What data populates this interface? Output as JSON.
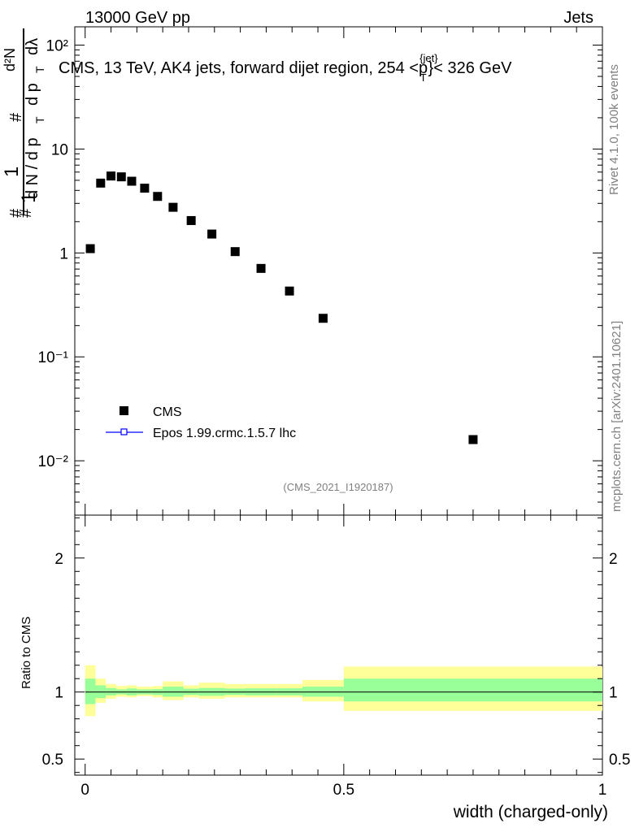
{
  "header": {
    "left": "13000 GeV pp",
    "right": "Jets"
  },
  "side_labels": {
    "rivet": "Rivet 4.1.0,  100k events",
    "mcplots": "mcplots.cern.ch [arXiv:2401.10621]"
  },
  "analysis_id": "(CMS_2021_I1920187)",
  "colors": {
    "data": "#000000",
    "mc": "#0000ff",
    "band_outer": "#ffff99",
    "band_inner": "#99ff99"
  },
  "chart_data": [
    {
      "type": "scatter",
      "panel": "main",
      "title": "CMS, 13 TeV, AK4 jets, forward dijet region, 254 <",
      "title_ptjet_sup": "{jet}",
      "title_ptjet_main": "p",
      "title_ptjet_sub": "T",
      "title_ptjet_close": "}< 326 GeV",
      "ylabel_lines": [
        "#",
        "1",
        "d N / d p",
        "T",
        "#",
        "d p",
        "T",
        "d²N",
        "dλ"
      ],
      "yscale": "log",
      "ylim": [
        0.003,
        150
      ],
      "xlim": [
        -0.02,
        1.0
      ],
      "ytick_labels": [
        "10²",
        "10",
        "1",
        "10⁻¹",
        "10⁻²"
      ],
      "ytick_values": [
        100,
        10,
        1,
        0.1,
        0.01
      ],
      "legend": {
        "position": "bottom-left",
        "entries": [
          "CMS",
          "Epos 1.99.crmc.1.5.7 lhc"
        ]
      },
      "series": [
        {
          "name": "CMS",
          "x": [
            0.01,
            0.03,
            0.05,
            0.07,
            0.09,
            0.115,
            0.14,
            0.17,
            0.205,
            0.245,
            0.29,
            0.34,
            0.395,
            0.46,
            0.75
          ],
          "y": [
            1.1,
            4.7,
            5.5,
            5.4,
            4.9,
            4.2,
            3.5,
            2.75,
            2.05,
            1.52,
            1.03,
            0.71,
            0.43,
            0.235,
            0.016
          ]
        }
      ]
    },
    {
      "type": "area",
      "panel": "ratio",
      "ylabel": "Ratio to CMS",
      "xlabel": "width (charged-only)",
      "ylim": [
        0.38,
        2.32
      ],
      "xlim": [
        -0.02,
        1.0
      ],
      "xtick_labels": [
        "0",
        "0.5",
        "1"
      ],
      "xtick_values": [
        0,
        0.5,
        1
      ],
      "ytick_labels": [
        "2",
        "1",
        "0.5"
      ],
      "ytick_values": [
        2,
        1,
        0.5
      ],
      "bin_edges": [
        0,
        0.02,
        0.04,
        0.06,
        0.08,
        0.1,
        0.13,
        0.15,
        0.19,
        0.22,
        0.27,
        0.31,
        0.37,
        0.42,
        0.5,
        1.0
      ],
      "outer_band": {
        "low": [
          0.82,
          0.92,
          0.95,
          0.965,
          0.96,
          0.97,
          0.96,
          0.94,
          0.96,
          0.95,
          0.96,
          0.96,
          0.96,
          0.93,
          0.86
        ],
        "high": [
          1.2,
          1.1,
          1.06,
          1.045,
          1.05,
          1.04,
          1.045,
          1.08,
          1.05,
          1.07,
          1.06,
          1.06,
          1.06,
          1.09,
          1.19
        ]
      },
      "inner_band": {
        "low": [
          0.91,
          0.955,
          0.975,
          0.982,
          0.975,
          0.982,
          0.978,
          0.965,
          0.978,
          0.972,
          0.978,
          0.975,
          0.975,
          0.965,
          0.93
        ],
        "high": [
          1.1,
          1.05,
          1.03,
          1.02,
          1.027,
          1.02,
          1.022,
          1.04,
          1.025,
          1.03,
          1.026,
          1.028,
          1.028,
          1.04,
          1.1
        ]
      },
      "reference_line": 1
    }
  ]
}
